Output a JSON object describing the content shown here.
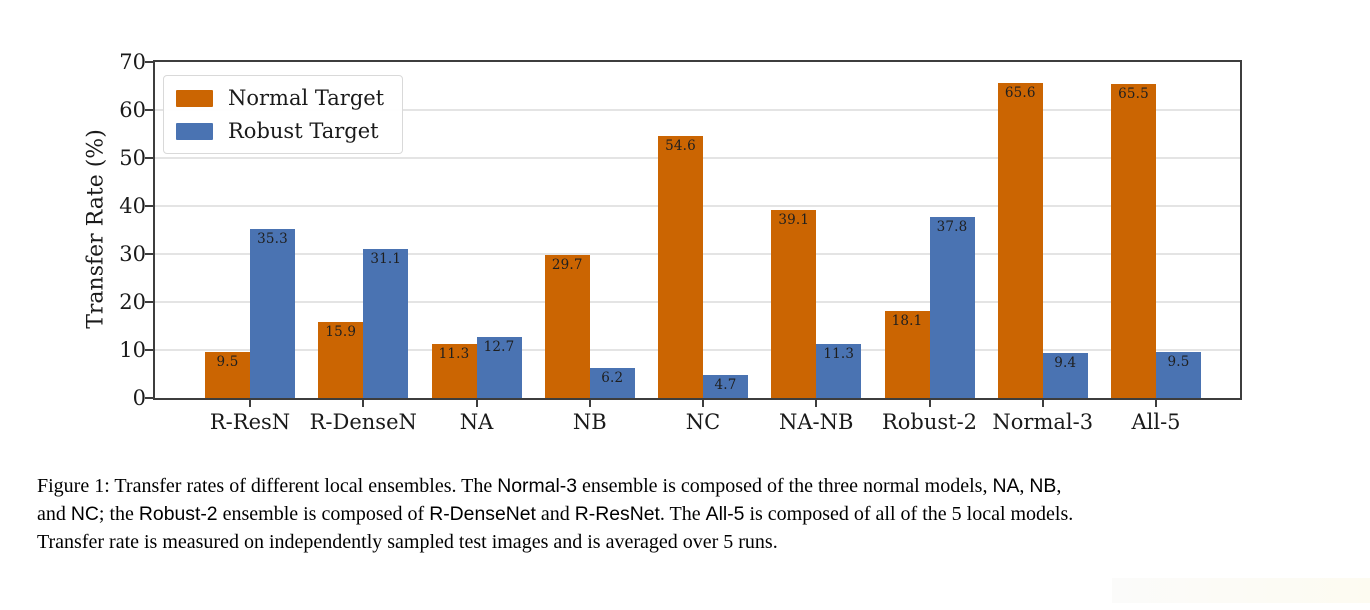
{
  "chart_data": {
    "type": "bar",
    "title": "",
    "xlabel": "",
    "ylabel": "Transfer Rate (%)",
    "ylim": [
      0,
      70
    ],
    "yticks": [
      0,
      10,
      20,
      30,
      40,
      50,
      60,
      70
    ],
    "grid": true,
    "legend_position": "upper-left",
    "bar_value_labels": true,
    "categories": [
      "R-ResN",
      "R-DenseN",
      "NA",
      "NB",
      "NC",
      "NA-NB",
      "Robust-2",
      "Normal-3",
      "All-5"
    ],
    "series": [
      {
        "name": "Normal Target",
        "color": "#CB6502",
        "values": [
          9.5,
          15.9,
          11.3,
          29.7,
          54.6,
          39.1,
          18.1,
          65.6,
          65.5
        ]
      },
      {
        "name": "Robust Target",
        "color": "#4A73B2",
        "values": [
          35.3,
          31.1,
          12.7,
          6.2,
          4.7,
          11.3,
          37.8,
          9.4,
          9.5
        ]
      }
    ]
  },
  "caption": {
    "lines": [
      [
        {
          "t": "Figure 1: Transfer rates of different local ensembles. The ",
          "f": "serif"
        },
        {
          "t": "Normal-3",
          "f": "sans"
        },
        {
          "t": " ensemble is composed of the three normal models, ",
          "f": "serif"
        },
        {
          "t": "NA",
          "f": "sans"
        },
        {
          "t": ", ",
          "f": "serif"
        },
        {
          "t": "NB",
          "f": "sans"
        },
        {
          "t": ",",
          "f": "serif"
        }
      ],
      [
        {
          "t": "and ",
          "f": "serif"
        },
        {
          "t": "NC",
          "f": "sans"
        },
        {
          "t": "; the ",
          "f": "serif"
        },
        {
          "t": "Robust-2",
          "f": "sans"
        },
        {
          "t": " ensemble is composed of ",
          "f": "serif"
        },
        {
          "t": "R-DenseNet",
          "f": "sans"
        },
        {
          "t": " and ",
          "f": "serif"
        },
        {
          "t": "R-ResNet",
          "f": "sans"
        },
        {
          "t": ". The ",
          "f": "serif"
        },
        {
          "t": "All-5",
          "f": "sans"
        },
        {
          "t": " is composed of all of the 5 local models.",
          "f": "serif"
        }
      ],
      [
        {
          "t": "Transfer rate is measured on independently sampled test images and is averaged over 5 runs.",
          "f": "serif"
        }
      ]
    ]
  }
}
